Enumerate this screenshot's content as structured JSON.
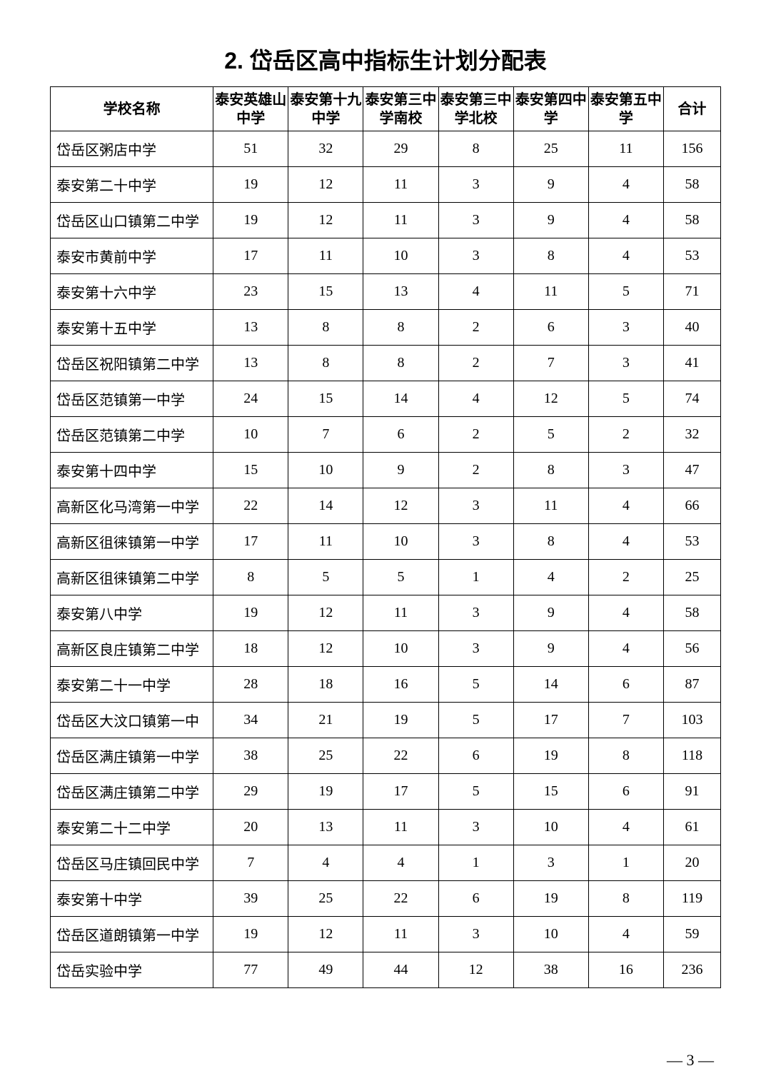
{
  "title": "2. 岱岳区高中指标生计划分配表",
  "headers": {
    "school": "学校名称",
    "col1": "泰安英雄山中学",
    "col2": "泰安第十九中学",
    "col3": "泰安第三中学南校",
    "col4": "泰安第三中学北校",
    "col5": "泰安第四中学",
    "col6": "泰安第五中学",
    "col7": "合计"
  },
  "rows": [
    {
      "name": "岱岳区粥店中学",
      "v": [
        51,
        32,
        29,
        8,
        25,
        11,
        156
      ]
    },
    {
      "name": "泰安第二十中学",
      "v": [
        19,
        12,
        11,
        3,
        9,
        4,
        58
      ]
    },
    {
      "name": "岱岳区山口镇第二中学",
      "v": [
        19,
        12,
        11,
        3,
        9,
        4,
        58
      ]
    },
    {
      "name": "泰安市黄前中学",
      "v": [
        17,
        11,
        10,
        3,
        8,
        4,
        53
      ]
    },
    {
      "name": "泰安第十六中学",
      "v": [
        23,
        15,
        13,
        4,
        11,
        5,
        71
      ]
    },
    {
      "name": "泰安第十五中学",
      "v": [
        13,
        8,
        8,
        2,
        6,
        3,
        40
      ]
    },
    {
      "name": "岱岳区祝阳镇第二中学",
      "v": [
        13,
        8,
        8,
        2,
        7,
        3,
        41
      ]
    },
    {
      "name": "岱岳区范镇第一中学",
      "v": [
        24,
        15,
        14,
        4,
        12,
        5,
        74
      ]
    },
    {
      "name": "岱岳区范镇第二中学",
      "v": [
        10,
        7,
        6,
        2,
        5,
        2,
        32
      ]
    },
    {
      "name": "泰安第十四中学",
      "v": [
        15,
        10,
        9,
        2,
        8,
        3,
        47
      ]
    },
    {
      "name": "高新区化马湾第一中学",
      "v": [
        22,
        14,
        12,
        3,
        11,
        4,
        66
      ]
    },
    {
      "name": "高新区徂徕镇第一中学",
      "v": [
        17,
        11,
        10,
        3,
        8,
        4,
        53
      ]
    },
    {
      "name": "高新区徂徕镇第二中学",
      "v": [
        8,
        5,
        5,
        1,
        4,
        2,
        25
      ]
    },
    {
      "name": "泰安第八中学",
      "v": [
        19,
        12,
        11,
        3,
        9,
        4,
        58
      ]
    },
    {
      "name": "高新区良庄镇第二中学",
      "v": [
        18,
        12,
        10,
        3,
        9,
        4,
        56
      ]
    },
    {
      "name": "泰安第二十一中学",
      "v": [
        28,
        18,
        16,
        5,
        14,
        6,
        87
      ]
    },
    {
      "name": "岱岳区大汶口镇第一中",
      "v": [
        34,
        21,
        19,
        5,
        17,
        7,
        103
      ]
    },
    {
      "name": "岱岳区满庄镇第一中学",
      "v": [
        38,
        25,
        22,
        6,
        19,
        8,
        118
      ]
    },
    {
      "name": "岱岳区满庄镇第二中学",
      "v": [
        29,
        19,
        17,
        5,
        15,
        6,
        91
      ]
    },
    {
      "name": "泰安第二十二中学",
      "v": [
        20,
        13,
        11,
        3,
        10,
        4,
        61
      ]
    },
    {
      "name": "岱岳区马庄镇回民中学",
      "v": [
        7,
        4,
        4,
        1,
        3,
        1,
        20
      ]
    },
    {
      "name": "泰安第十中学",
      "v": [
        39,
        25,
        22,
        6,
        19,
        8,
        119
      ]
    },
    {
      "name": "岱岳区道朗镇第一中学",
      "v": [
        19,
        12,
        11,
        3,
        10,
        4,
        59
      ]
    },
    {
      "name": "岱岳实验中学",
      "v": [
        77,
        49,
        44,
        12,
        38,
        16,
        236
      ]
    }
  ],
  "pagenum": "— 3 —"
}
